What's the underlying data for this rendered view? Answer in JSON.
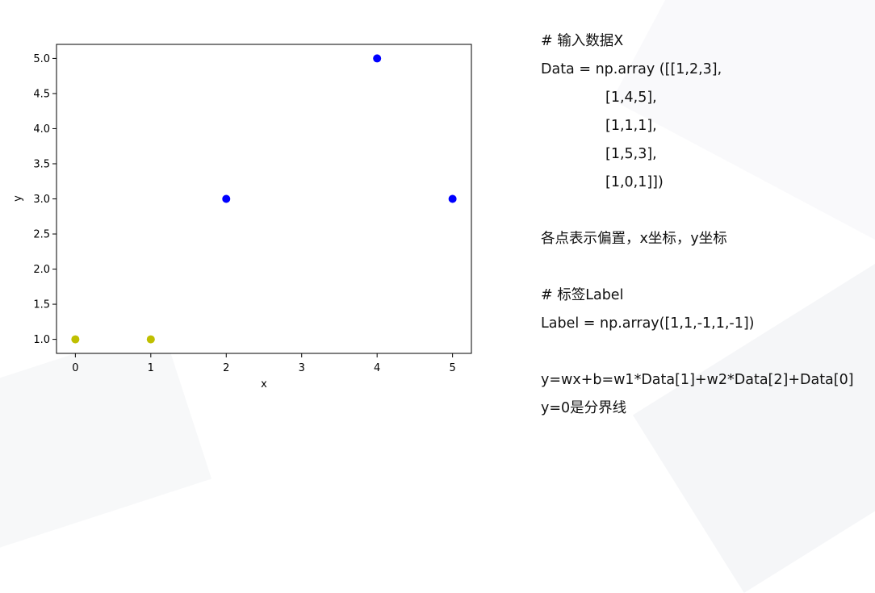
{
  "chart_data": {
    "type": "scatter",
    "title": "",
    "xlabel": "x",
    "ylabel": "y",
    "xlim": [
      -0.25,
      5.25
    ],
    "ylim": [
      0.8,
      5.2
    ],
    "xticks": [
      "0",
      "1",
      "2",
      "3",
      "4",
      "5"
    ],
    "yticks": [
      "1.0",
      "1.5",
      "2.0",
      "2.5",
      "3.0",
      "3.5",
      "4.0",
      "4.5",
      "5.0"
    ],
    "grid": false,
    "series": [
      {
        "color": "#bfbf00",
        "points": [
          {
            "x": 0,
            "y": 1
          },
          {
            "x": 1,
            "y": 1
          }
        ]
      },
      {
        "color": "#0000ff",
        "points": [
          {
            "x": 2,
            "y": 3
          },
          {
            "x": 4,
            "y": 5
          },
          {
            "x": 5,
            "y": 3
          }
        ]
      }
    ]
  },
  "code": {
    "comment_input": "# 输入数据X",
    "data_line": "Data = np.array ([[1,2,3],",
    "row2": "[1,4,5],",
    "row3": "[1,1,1],",
    "row4": "[1,5,3],",
    "row5": "[1,0,1]])",
    "description": "各点表示偏置，x坐标，y坐标",
    "comment_label": "# 标签Label",
    "label_line": "Label = np.array([1,1,-1,1,-1])",
    "equation": "y=wx+b=w1*Data[1]+w2*Data[2]+Data[0]",
    "boundary": "y=0是分界线"
  }
}
